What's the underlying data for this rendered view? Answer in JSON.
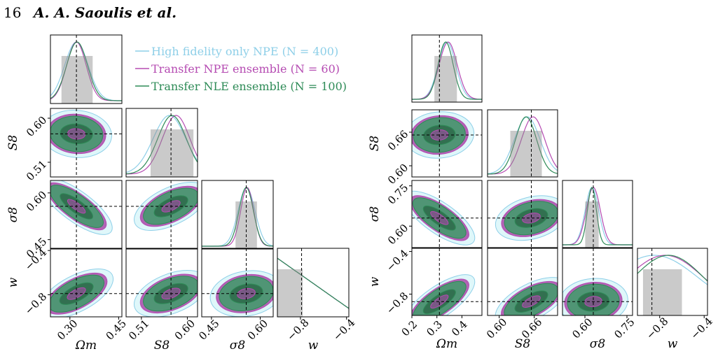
{
  "header": {
    "page_number": "16",
    "authors": "A. A. Saoulis et al."
  },
  "legend": [
    {
      "label": "High fidelity only NPE (N = 400)",
      "color": "#8ecfe8"
    },
    {
      "label": "Transfer NPE ensemble (N = 60)",
      "color": "#b54bb2"
    },
    {
      "label": "Transfer NLE ensemble (N = 100)",
      "color": "#2e8b57"
    }
  ],
  "colors": {
    "hifi": "#8ecfe8",
    "npe": "#b54bb2",
    "nle": "#2e8b57",
    "truth": "#000000",
    "shade": "#8a8a8a"
  },
  "chart_data": [
    {
      "type": "corner",
      "parameters": [
        "Ωm",
        "S8",
        "σ8",
        "w"
      ],
      "truth": [
        0.32,
        0.568,
        0.557,
        -0.79
      ],
      "ranges": [
        [
          0.24,
          0.46
        ],
        [
          0.48,
          0.62
        ],
        [
          0.42,
          0.64
        ],
        [
          -1.0,
          -0.38
        ]
      ],
      "ticks": [
        {
          "values": [
            0.3,
            0.45
          ],
          "labels": [
            "0.30",
            "0.45"
          ]
        },
        {
          "values": [
            0.51,
            0.6
          ],
          "labels": [
            "0.51",
            "0.60"
          ]
        },
        {
          "values": [
            0.45,
            0.6
          ],
          "labels": [
            "0.45",
            "0.60"
          ]
        },
        {
          "values": [
            -0.8,
            -0.4
          ],
          "labels": [
            "−0.8",
            "−0.4"
          ]
        }
      ],
      "diag_peaks": {
        "hifi": [
          [
            0.32,
            0.036
          ],
          [
            0.565,
            0.032
          ],
          [
            0.558,
            0.026
          ],
          [
            -1.0,
            0.25
          ]
        ],
        "npe": [
          [
            0.32,
            0.03
          ],
          [
            0.578,
            0.027
          ],
          [
            0.56,
            0.02
          ],
          [
            -1.0,
            0.3
          ]
        ],
        "nle": [
          [
            0.322,
            0.032
          ],
          [
            0.57,
            0.028
          ],
          [
            0.557,
            0.022
          ],
          [
            -1.0,
            0.28
          ]
        ]
      },
      "off_diag_correlations": {
        "S8-Ωm": -0.1,
        "σ8-Ωm": -0.85,
        "σ8-S8": 0.55,
        "w-Ωm": 0.6,
        "w-S8": 0.45,
        "w-σ8": 0.2
      }
    },
    {
      "type": "corner",
      "parameters": [
        "Ωm",
        "S8",
        "σ8",
        "w"
      ],
      "truth": [
        0.31,
        0.655,
        0.63,
        -0.87
      ],
      "ranges": [
        [
          0.2,
          0.48
        ],
        [
          0.58,
          0.7
        ],
        [
          0.52,
          0.77
        ],
        [
          -1.0,
          -0.37
        ]
      ],
      "ticks": [
        {
          "values": [
            0.2,
            0.3,
            0.4
          ],
          "labels": [
            "0.2",
            "0.3",
            "0.4"
          ]
        },
        {
          "values": [
            0.6,
            0.66
          ],
          "labels": [
            "0.60",
            "0.66"
          ]
        },
        {
          "values": [
            0.6,
            0.75
          ],
          "labels": [
            "0.60",
            "0.75"
          ]
        },
        {
          "values": [
            -0.8,
            -0.4
          ],
          "labels": [
            "−0.8",
            "−0.4"
          ]
        }
      ],
      "diag_peaks": {
        "hifi": [
          [
            0.34,
            0.035
          ],
          [
            0.648,
            0.022
          ],
          [
            0.625,
            0.024
          ],
          [
            -0.85,
            0.4
          ]
        ],
        "npe": [
          [
            0.345,
            0.036
          ],
          [
            0.658,
            0.02
          ],
          [
            0.63,
            0.025
          ],
          [
            -0.75,
            0.35
          ]
        ],
        "nle": [
          [
            0.335,
            0.03
          ],
          [
            0.646,
            0.018
          ],
          [
            0.625,
            0.016
          ],
          [
            -0.72,
            0.32
          ]
        ]
      },
      "off_diag_correlations": {
        "S8-Ωm": 0.1,
        "σ8-Ωm": -0.8,
        "σ8-S8": 0.3,
        "w-Ωm": 0.8,
        "w-S8": 0.6,
        "w-σ8": 0.1
      }
    }
  ]
}
